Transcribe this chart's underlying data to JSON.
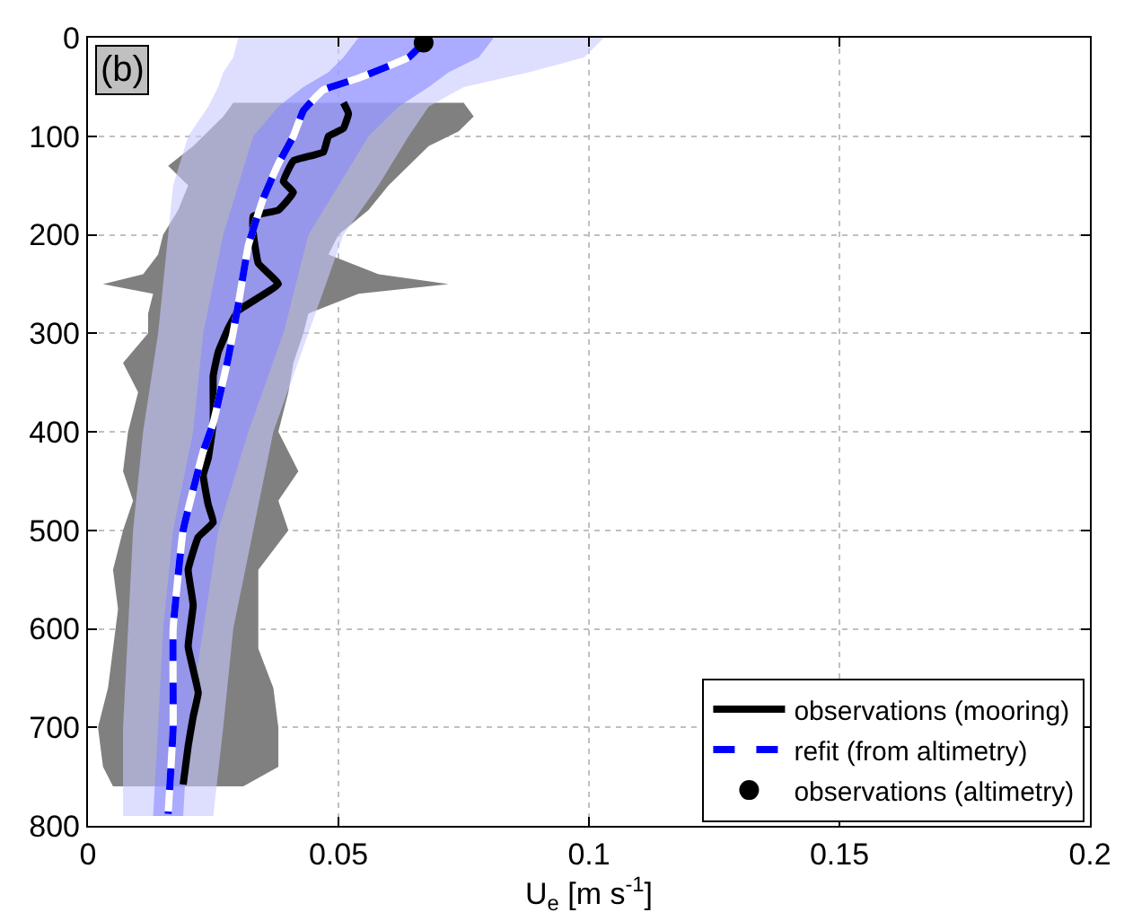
{
  "chart_data": {
    "type": "line",
    "xlabel": "U$_{e}$ [m s$^{-1}$]",
    "annotations": [
      "(b)"
    ],
    "xlim": [
      0,
      0.2
    ],
    "xticks": [
      0,
      0.05,
      0.1,
      0.15,
      0.2
    ],
    "ylim": [
      800,
      0
    ],
    "yticks": [
      0,
      100,
      200,
      300,
      400,
      500,
      600,
      700,
      800
    ],
    "grid": true,
    "legend": "bottom right",
    "series": [
      {
        "type": "area",
        "color": "#808080",
        "x": [
          0.029,
          0.027,
          0.024,
          0.021,
          0.016,
          0.02,
          0.018,
          0.015,
          0.014,
          0.011,
          0.003,
          0.013,
          0.012,
          0.012,
          0.007,
          0.01,
          0.008,
          0.007,
          0.009,
          0.007,
          0.005,
          0.006,
          0.005,
          0.004,
          0.002,
          0.003,
          0.005,
          0.031,
          0.038,
          0.038,
          0.037,
          0.034,
          0.034,
          0.034,
          0.04,
          0.038,
          0.042,
          0.038,
          0.04,
          0.041,
          0.043,
          0.044,
          0.054,
          0.072,
          0.058,
          0.048,
          0.05,
          0.056,
          0.06,
          0.064,
          0.068,
          0.074,
          0.077,
          0.075
        ],
        "values": [
          66,
          80,
          95,
          110,
          130,
          150,
          175,
          200,
          220,
          240,
          250,
          260,
          280,
          300,
          330,
          360,
          400,
          440,
          470,
          500,
          540,
          580,
          620,
          660,
          700,
          740,
          760,
          760,
          740,
          700,
          660,
          620,
          580,
          540,
          500,
          470,
          440,
          400,
          360,
          330,
          300,
          280,
          260,
          250,
          240,
          220,
          200,
          175,
          150,
          130,
          110,
          95,
          80,
          66
        ]
      },
      {
        "type": "area",
        "color": "#c8c8ff",
        "x": [
          0.03,
          0.029,
          0.027,
          0.026,
          0.024,
          0.02,
          0.017,
          0.016,
          0.014,
          0.011,
          0.009,
          0.008,
          0.007,
          0.007,
          0.025,
          0.027,
          0.029,
          0.033,
          0.037,
          0.044,
          0.051,
          0.058,
          0.064,
          0.068,
          0.075,
          0.088,
          0.099,
          0.103
        ],
        "values": [
          0,
          20,
          35,
          50,
          70,
          100,
          150,
          200,
          300,
          400,
          500,
          600,
          700,
          790,
          790,
          700,
          600,
          500,
          400,
          300,
          200,
          150,
          100,
          70,
          50,
          35,
          20,
          0
        ]
      },
      {
        "type": "area",
        "color": "#8888ff",
        "x": [
          0.054,
          0.051,
          0.048,
          0.043,
          0.038,
          0.033,
          0.03,
          0.027,
          0.023,
          0.021,
          0.017,
          0.015,
          0.014,
          0.013,
          0.019,
          0.02,
          0.023,
          0.026,
          0.032,
          0.039,
          0.044,
          0.05,
          0.056,
          0.062,
          0.068,
          0.072,
          0.078,
          0.081
        ],
        "values": [
          0,
          20,
          35,
          50,
          70,
          100,
          150,
          200,
          300,
          400,
          500,
          600,
          700,
          790,
          790,
          700,
          600,
          500,
          400,
          300,
          200,
          150,
          100,
          70,
          50,
          35,
          20,
          0
        ]
      },
      {
        "name": "observations (mooring)",
        "color": "#000000",
        "line_style": "solid",
        "x": [
          0.051,
          0.052,
          0.051,
          0.048,
          0.047,
          0.041,
          0.039,
          0.041,
          0.038,
          0.033,
          0.033,
          0.034,
          0.038,
          0.03,
          0.028,
          0.026,
          0.025,
          0.025,
          0.025,
          0.024,
          0.023,
          0.024,
          0.025,
          0.022,
          0.02,
          0.021,
          0.02,
          0.022,
          0.021,
          0.02,
          0.019
        ],
        "values": [
          66,
          77,
          92,
          100,
          116,
          125,
          146,
          157,
          175,
          181,
          199,
          229,
          250,
          277,
          295,
          319,
          343,
          367,
          391,
          427,
          444,
          474,
          492,
          507,
          540,
          576,
          618,
          665,
          689,
          719,
          758
        ]
      },
      {
        "name": "refit (from altimetry)",
        "color": "#0000ff",
        "line_style": "dashed",
        "x": [
          0.067,
          0.064,
          0.054,
          0.047,
          0.043,
          0.041,
          0.038,
          0.035,
          0.032,
          0.03,
          0.028,
          0.025,
          0.023,
          0.019,
          0.017,
          0.017,
          0.016
        ],
        "values": [
          5,
          20,
          41,
          53,
          74,
          100,
          128,
          163,
          211,
          271,
          325,
          391,
          420,
          500,
          600,
          700,
          788
        ]
      },
      {
        "type": "scatter",
        "name": "observations (altimetry)",
        "color": "#000000",
        "marker": "circle",
        "x": [
          0.067
        ],
        "values": [
          5
        ]
      }
    ]
  }
}
